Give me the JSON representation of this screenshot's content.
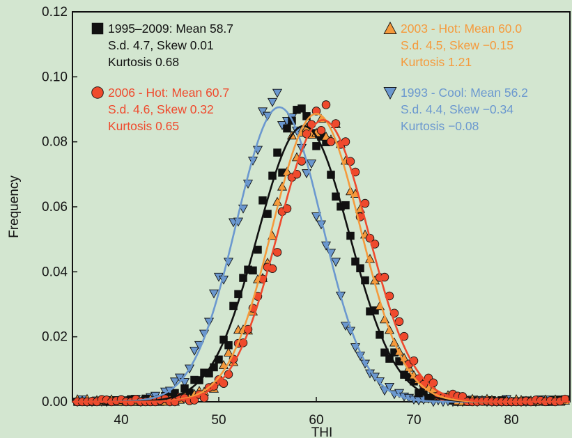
{
  "chart_data": {
    "type": "scatter",
    "xlabel": "THI",
    "ylabel": "Frequency",
    "xlim": [
      35,
      86
    ],
    "ylim": [
      0,
      0.12
    ],
    "xticks": [
      40,
      50,
      60,
      70,
      80
    ],
    "yticks": [
      0.0,
      0.02,
      0.04,
      0.06,
      0.08,
      0.1,
      0.12
    ],
    "ytick_labels": [
      "0.00",
      "0.02",
      "0.04",
      "0.06",
      "0.08",
      "0.10",
      "0.12"
    ],
    "grid": false,
    "background": "#d3e6d0",
    "series": [
      {
        "name": "1995–2009",
        "marker": "square",
        "color": "#111111",
        "mean": 58.7,
        "sd": 4.7,
        "legend": [
          "1995–2009: Mean 58.7",
          "S.d. 4.7, Skew 0.01",
          "Kurtosis 0.68"
        ],
        "legend_position": "top-left"
      },
      {
        "name": "2006 - Hot",
        "marker": "circle",
        "color": "#ef4a2d",
        "mean": 60.7,
        "sd": 4.6,
        "legend": [
          "2006 - Hot: Mean 60.7",
          "S.d. 4.6, Skew 0.32",
          "Kurtosis 0.65"
        ],
        "legend_position": "left"
      },
      {
        "name": "2003 - Hot",
        "marker": "triangle-up",
        "color": "#f59a3c",
        "mean": 60.0,
        "sd": 4.5,
        "legend": [
          "2003 - Hot: Mean 60.0",
          "S.d. 4.5, Skew −0.15",
          "Kurtosis 1.21"
        ],
        "legend_position": "top-right"
      },
      {
        "name": "1993 - Cool",
        "marker": "triangle-down",
        "color": "#6b98cf",
        "mean": 56.2,
        "sd": 4.4,
        "legend": [
          "1993 - Cool: Mean 56.2",
          "S.d. 4.4, Skew −0.34",
          "Kurtosis −0.08"
        ],
        "legend_position": "right"
      }
    ]
  }
}
